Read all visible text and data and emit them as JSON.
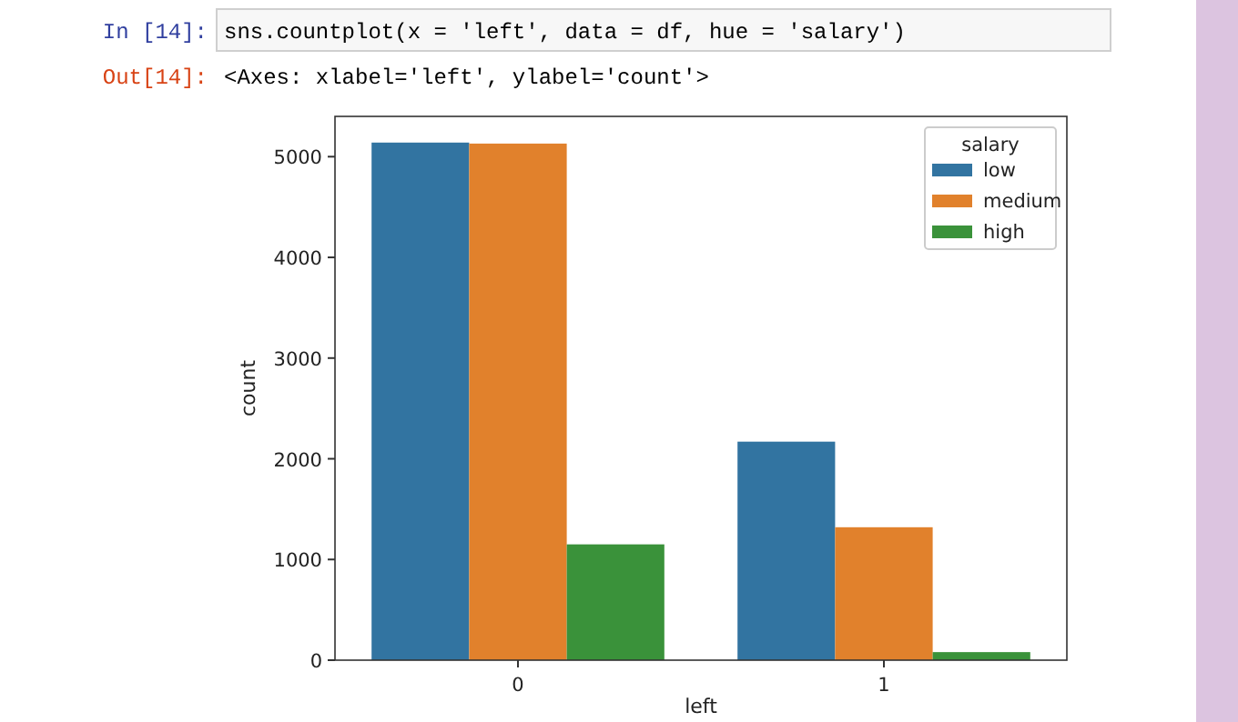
{
  "chart_data": {
    "type": "bar",
    "xlabel": "left",
    "ylabel": "count",
    "legend_title": "salary",
    "legend": "top right",
    "grid": false,
    "categories": [
      "0",
      "1"
    ],
    "series": [
      {
        "name": "low",
        "color": "#3274a1",
        "values": [
          5140,
          2170
        ]
      },
      {
        "name": "medium",
        "color": "#e1812c",
        "values": [
          5130,
          1320
        ]
      },
      {
        "name": "high",
        "color": "#3a923a",
        "values": [
          1150,
          80
        ]
      }
    ],
    "ylim": [
      0,
      5400
    ],
    "yticks": [
      0,
      1000,
      2000,
      3000,
      4000,
      5000
    ],
    "annotations": [
      "In [14]:",
      "sns.countplot(x = 'left', data = df, hue = 'salary')",
      "Out[14]:",
      "<Axes: xlabel='left', ylabel='count'>"
    ]
  }
}
